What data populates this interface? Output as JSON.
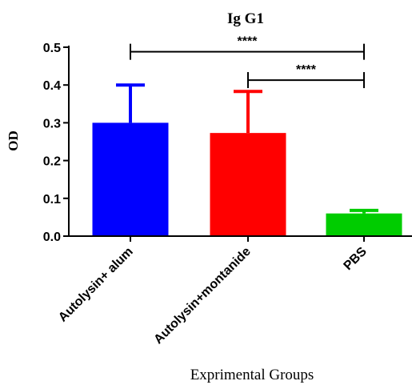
{
  "chart_data": {
    "type": "bar",
    "title": "Ig G1",
    "ylabel": "OD",
    "xlabel": "Exprimental Groups",
    "ylim": [
      0,
      0.5
    ],
    "yticks": [
      "0.0",
      "0.1",
      "0.2",
      "0.3",
      "0.4",
      "0.5"
    ],
    "categories": [
      "Autolysin+ alum",
      "Autolysin+montanide",
      "PBS"
    ],
    "values": [
      0.3,
      0.273,
      0.06
    ],
    "errors": [
      0.1,
      0.11,
      0.008
    ],
    "colors": [
      "#0000ff",
      "#ff0000",
      "#00cc00"
    ],
    "grid": false,
    "significance": [
      {
        "from": 0,
        "to": 2,
        "y": 0.488,
        "label": "****"
      },
      {
        "from": 1,
        "to": 2,
        "y": 0.413,
        "label": "****"
      }
    ]
  }
}
